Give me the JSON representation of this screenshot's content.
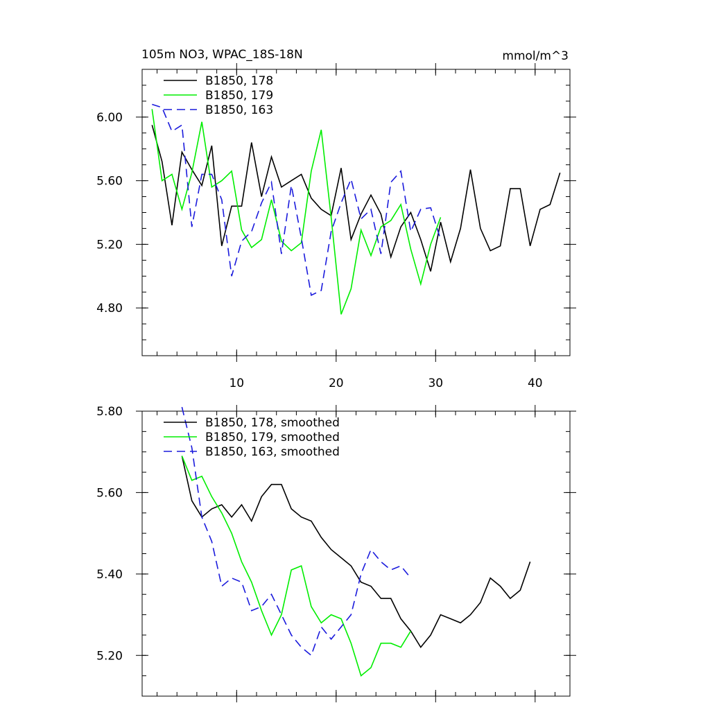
{
  "top_title_left": "105m NO3, WPAC_18S-18N",
  "top_title_right": "mmol/m^3",
  "colors": {
    "s178": "#000000",
    "s179": "#00ee00",
    "s163": "#1a1adc"
  },
  "chart_data": [
    {
      "type": "line",
      "xlim": [
        0.5,
        43.5
      ],
      "ylim": [
        4.5,
        6.3
      ],
      "x_ticks": [
        10,
        20,
        30,
        40
      ],
      "x_tick_labels": [
        "10",
        "20",
        "30",
        "40"
      ],
      "y_ticks": [
        4.8,
        5.2,
        5.6,
        6.0
      ],
      "y_tick_labels": [
        "4.80",
        "5.20",
        "5.60",
        "6.00"
      ],
      "x_minor_step": 2,
      "y_minor_step": 0.1,
      "legend_position": "top-left",
      "series": [
        {
          "name": "B1850, 178",
          "key": "s178",
          "dash": false,
          "x_start": 1.5,
          "values": [
            5.95,
            5.72,
            5.32,
            5.78,
            5.67,
            5.57,
            5.82,
            5.19,
            5.44,
            5.44,
            5.84,
            5.5,
            5.75,
            5.56,
            5.6,
            5.64,
            5.49,
            5.42,
            5.38,
            5.68,
            5.23,
            5.39,
            5.51,
            5.39,
            5.12,
            5.31,
            5.4,
            5.23,
            5.03,
            5.34,
            5.09,
            5.3,
            5.67,
            5.3,
            5.16,
            5.19,
            5.55,
            5.55,
            5.19,
            5.42,
            5.45,
            5.65
          ]
        },
        {
          "name": "B1850, 179",
          "key": "s179",
          "dash": false,
          "x_start": 1.5,
          "values": [
            6.05,
            5.6,
            5.64,
            5.42,
            5.65,
            5.97,
            5.56,
            5.6,
            5.66,
            5.29,
            5.18,
            5.23,
            5.48,
            5.22,
            5.16,
            5.21,
            5.66,
            5.92,
            5.37,
            4.76,
            4.92,
            5.29,
            5.13,
            5.31,
            5.35,
            5.45,
            5.17,
            4.95,
            5.2,
            5.37
          ]
        },
        {
          "name": "B1850, 163",
          "key": "s163",
          "dash": true,
          "x_start": 1.5,
          "values": [
            6.08,
            6.06,
            5.91,
            5.95,
            5.31,
            5.64,
            5.64,
            5.48,
            5.0,
            5.22,
            5.28,
            5.46,
            5.59,
            5.14,
            5.57,
            5.24,
            4.88,
            4.91,
            5.28,
            5.46,
            5.61,
            5.36,
            5.42,
            5.14,
            5.59,
            5.66,
            5.28,
            5.42,
            5.43,
            5.23
          ]
        }
      ]
    },
    {
      "type": "line",
      "xlim": [
        0.5,
        43.5
      ],
      "ylim": [
        5.1,
        5.8
      ],
      "x_ticks": [
        10,
        20,
        30,
        40
      ],
      "x_tick_labels": [
        "",
        "",
        "",
        ""
      ],
      "y_ticks": [
        5.2,
        5.4,
        5.6,
        5.8
      ],
      "y_tick_labels": [
        "5.20",
        "5.40",
        "5.60",
        "5.80"
      ],
      "x_minor_step": 2,
      "y_minor_step": 0.05,
      "legend_position": "top-left",
      "series": [
        {
          "name": "B1850, 178, smoothed",
          "key": "s178",
          "dash": false,
          "x_start": 4.5,
          "values": [
            5.69,
            5.58,
            5.54,
            5.56,
            5.57,
            5.54,
            5.57,
            5.53,
            5.59,
            5.62,
            5.62,
            5.56,
            5.54,
            5.53,
            5.49,
            5.46,
            5.44,
            5.42,
            5.38,
            5.37,
            5.34,
            5.34,
            5.29,
            5.26,
            5.22,
            5.25,
            5.3,
            5.29,
            5.28,
            5.3,
            5.33,
            5.39,
            5.37,
            5.34,
            5.36,
            5.43
          ]
        },
        {
          "name": "B1850, 179, smoothed",
          "key": "s179",
          "dash": false,
          "x_start": 4.5,
          "values": [
            5.69,
            5.63,
            5.64,
            5.59,
            5.55,
            5.5,
            5.43,
            5.38,
            5.31,
            5.25,
            5.3,
            5.41,
            5.42,
            5.32,
            5.28,
            5.3,
            5.29,
            5.23,
            5.15,
            5.17,
            5.23,
            5.23,
            5.22,
            5.26
          ]
        },
        {
          "name": "B1850, 163, smoothed",
          "key": "s163",
          "dash": true,
          "x_start": 4.5,
          "values": [
            5.81,
            5.71,
            5.54,
            5.48,
            5.37,
            5.39,
            5.38,
            5.31,
            5.32,
            5.35,
            5.3,
            5.25,
            5.22,
            5.2,
            5.27,
            5.24,
            5.27,
            5.3,
            5.4,
            5.46,
            5.43,
            5.41,
            5.42,
            5.39
          ]
        }
      ]
    }
  ]
}
